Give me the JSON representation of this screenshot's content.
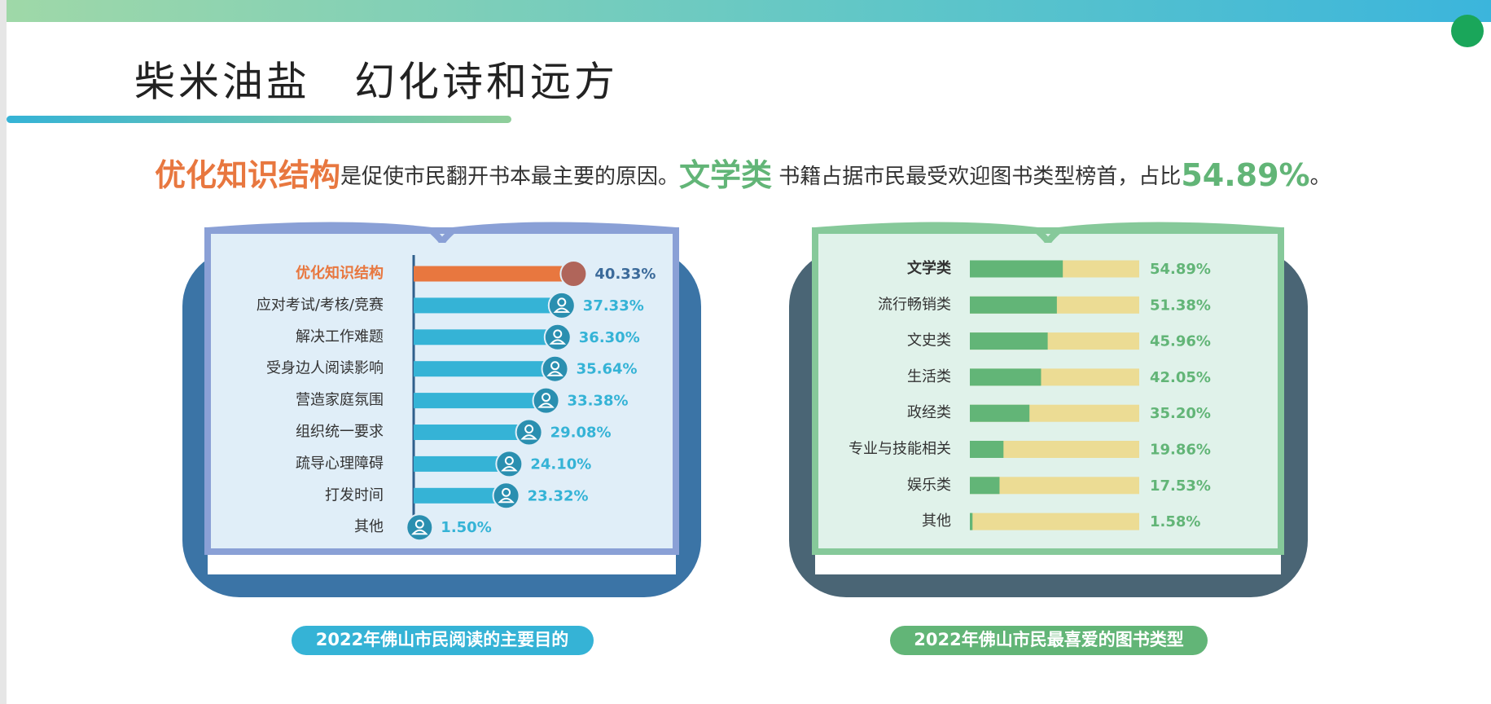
{
  "header": {
    "title": "柴米油盐　幻化诗和远方",
    "headline": [
      "优化知识结构",
      "是促使市民翻开书本最主要的原因。",
      "文学类",
      " 书籍占据市民最受欢迎图书类型榜首，占比",
      "54.89%",
      "。"
    ]
  },
  "chart_data": [
    {
      "type": "hbar",
      "title": "2022年佛山市民阅读的主要目的",
      "categories": [
        "优化知识结构",
        "应对考试/考核/竞赛",
        "解决工作难题",
        "受身边人阅读影响",
        "营造家庭氛围",
        "组织统一要求",
        "疏导心理障碍",
        "打发时间",
        "其他"
      ],
      "values": [
        40.33,
        37.33,
        36.3,
        35.64,
        33.38,
        29.08,
        24.1,
        23.32,
        1.5
      ],
      "value_labels": [
        "40.33%",
        "37.33%",
        "36.30%",
        "35.64%",
        "33.38%",
        "29.08%",
        "24.10%",
        "23.32%",
        "1.50%"
      ],
      "colors": [
        "#e8773f",
        "#35b3d6",
        "#35b3d6",
        "#35b3d6",
        "#35b3d6",
        "#35b3d6",
        "#35b3d6",
        "#35b3d6",
        "#35b3d6"
      ],
      "xlim": [
        0,
        100
      ]
    },
    {
      "type": "progress",
      "title": "2022年佛山市民最喜爱的图书类型",
      "categories": [
        "文学类",
        "流行畅销类",
        "文史类",
        "生活类",
        "政经类",
        "专业与技能相关",
        "娱乐类",
        "其他"
      ],
      "values": [
        54.89,
        51.38,
        45.96,
        42.05,
        35.2,
        19.86,
        17.53,
        1.58
      ],
      "value_labels": [
        "54.89%",
        "51.38%",
        "45.96%",
        "42.05%",
        "35.20%",
        "19.86%",
        "17.53%",
        "1.58%"
      ],
      "color": "#62b577",
      "track_color": "#ecdc94",
      "xlim": [
        0,
        100
      ]
    }
  ]
}
